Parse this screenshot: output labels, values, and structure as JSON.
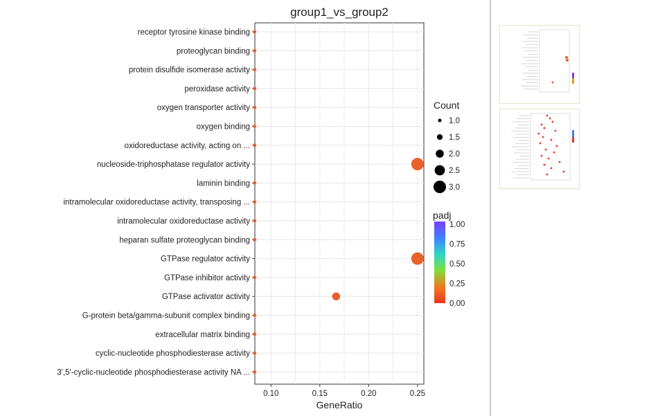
{
  "chart_data": {
    "type": "scatter",
    "title": "group1_vs_group2",
    "xlabel": "GeneRatio",
    "ylabel": "",
    "xlim": [
      0.0835,
      0.2565
    ],
    "x_ticks": [
      "0.10",
      "0.15",
      "0.20",
      "0.25"
    ],
    "x_tick_values": [
      0.1,
      0.15,
      0.2,
      0.25
    ],
    "grid": true,
    "legend_position": "right",
    "categories": [
      "receptor tyrosine kinase binding",
      "proteoglycan binding",
      "protein disulfide isomerase activity",
      "peroxidase activity",
      "oxygen transporter activity",
      "oxygen binding",
      "oxidoreductase activity, acting on ...",
      "nucleoside-triphosphatase regulator activity",
      "laminin binding",
      "intramolecular oxidoreductase activity, transposing ...",
      "intramolecular oxidoreductase activity",
      "heparan sulfate proteoglycan binding",
      "GTPase regulator activity",
      "GTPase inhibitor activity",
      "GTPase activator activity",
      "G-protein beta/gamma-subunit complex binding",
      "extracellular matrix binding",
      "cyclic-nucleotide phosphodiesterase activity",
      "3',5'-cyclic-nucleotide phosphodiesterase activity NA ..."
    ],
    "points": [
      {
        "term": "receptor tyrosine kinase binding",
        "gene_ratio": 0.0833,
        "count": 1,
        "padj": 0.0
      },
      {
        "term": "proteoglycan binding",
        "gene_ratio": 0.0833,
        "count": 1,
        "padj": 0.0
      },
      {
        "term": "protein disulfide isomerase activity",
        "gene_ratio": 0.0833,
        "count": 1,
        "padj": 0.0
      },
      {
        "term": "peroxidase activity",
        "gene_ratio": 0.0833,
        "count": 1,
        "padj": 0.0
      },
      {
        "term": "oxygen transporter activity",
        "gene_ratio": 0.0833,
        "count": 1,
        "padj": 0.0
      },
      {
        "term": "oxygen binding",
        "gene_ratio": 0.0833,
        "count": 1,
        "padj": 0.0
      },
      {
        "term": "oxidoreductase activity, acting on ...",
        "gene_ratio": 0.0833,
        "count": 1,
        "padj": 0.0
      },
      {
        "term": "nucleoside-triphosphatase regulator activity",
        "gene_ratio": 0.25,
        "count": 3,
        "padj": 0.0
      },
      {
        "term": "laminin binding",
        "gene_ratio": 0.0833,
        "count": 1,
        "padj": 0.0
      },
      {
        "term": "intramolecular oxidoreductase activity, transposing ...",
        "gene_ratio": 0.0833,
        "count": 1,
        "padj": 0.0
      },
      {
        "term": "intramolecular oxidoreductase activity",
        "gene_ratio": 0.0833,
        "count": 1,
        "padj": 0.0
      },
      {
        "term": "heparan sulfate proteoglycan binding",
        "gene_ratio": 0.0833,
        "count": 1,
        "padj": 0.0
      },
      {
        "term": "GTPase regulator activity",
        "gene_ratio": 0.25,
        "count": 3,
        "padj": 0.0
      },
      {
        "term": "GTPase inhibitor activity",
        "gene_ratio": 0.0833,
        "count": 1,
        "padj": 0.0
      },
      {
        "term": "GTPase activator activity",
        "gene_ratio": 0.1667,
        "count": 2,
        "padj": 0.0
      },
      {
        "term": "G-protein beta/gamma-subunit complex binding",
        "gene_ratio": 0.0833,
        "count": 1,
        "padj": 0.0
      },
      {
        "term": "extracellular matrix binding",
        "gene_ratio": 0.0833,
        "count": 1,
        "padj": 0.0
      },
      {
        "term": "cyclic-nucleotide phosphodiesterase activity",
        "gene_ratio": 0.0833,
        "count": 1,
        "padj": 0.0
      },
      {
        "term": "3',5'-cyclic-nucleotide phosphodiesterase activity NA ...",
        "gene_ratio": 0.0833,
        "count": 1,
        "padj": 0.0
      }
    ],
    "legend_count": {
      "title": "Count",
      "labels": [
        "1.0",
        "1.5",
        "2.0",
        "2.5",
        "3.0"
      ],
      "values": [
        1.0,
        1.5,
        2.0,
        2.5,
        3.0
      ]
    },
    "legend_padj": {
      "title": "padj",
      "labels": [
        "1.00",
        "0.75",
        "0.50",
        "0.25",
        "0.00"
      ],
      "values": [
        1.0,
        0.75,
        0.5,
        0.25,
        0.0
      ],
      "colors": [
        "#7b3fff",
        "#3f7fff",
        "#2fd6c8",
        "#7de03a",
        "#f07a20",
        "#e8371f"
      ]
    },
    "point_color": "#e8622a"
  }
}
